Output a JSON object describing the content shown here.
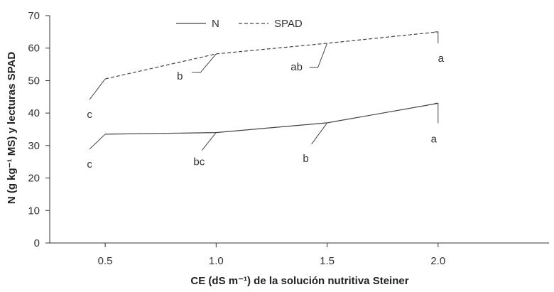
{
  "chart_data": {
    "type": "line",
    "title": "",
    "xlabel": "CE (dS m⁻¹) de la solución nutritiva Steiner",
    "ylabel": "N (g kg⁻¹ MS) y lecturas SPAD",
    "x": [
      0.5,
      1.0,
      1.5,
      2.0
    ],
    "xlim": [
      0.25,
      2.5
    ],
    "ylim": [
      0,
      70
    ],
    "x_ticks": [
      "0.5",
      "1.0",
      "1.5",
      "2.0"
    ],
    "y_ticks": [
      "0",
      "10",
      "20",
      "30",
      "40",
      "50",
      "60",
      "70"
    ],
    "grid": false,
    "legend_position": "top-center",
    "series": [
      {
        "name": "N",
        "style": "solid",
        "values": [
          33.5,
          34.0,
          37.0,
          43.0
        ],
        "significance": [
          "c",
          "bc",
          "b",
          "a"
        ]
      },
      {
        "name": "SPAD",
        "style": "dashed",
        "values": [
          50.5,
          58.2,
          61.5,
          65.0
        ],
        "significance": [
          "c",
          "b",
          "ab",
          "a"
        ]
      }
    ],
    "colors": {
      "line": "#444444",
      "axis": "#333333"
    }
  }
}
